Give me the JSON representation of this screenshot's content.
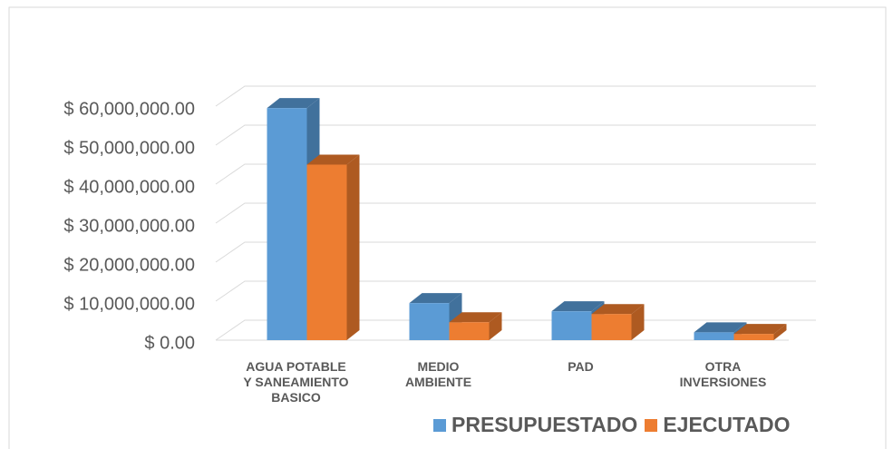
{
  "chart_data": {
    "type": "bar3d",
    "categories": [
      "AGUA POTABLE Y SANEAMIENTO BASICO",
      "MEDIO AMBIENTE",
      "PAD",
      "OTRA INVERSIONES"
    ],
    "series": [
      {
        "name": "PRESUPUESTADO",
        "color": "#5B9BD5",
        "side": "#41719C",
        "values": [
          59500000,
          9500000,
          7400000,
          2000000
        ]
      },
      {
        "name": "EJECUTADO",
        "color": "#ED7D31",
        "side": "#AE5A21",
        "values": [
          45000000,
          4600000,
          6700000,
          1600000
        ]
      }
    ],
    "ylim": [
      0,
      60000000
    ],
    "yticks": [
      {
        "value": 0,
        "label": "$ 0.00"
      },
      {
        "value": 10000000,
        "label": "$ 10,000,000.00"
      },
      {
        "value": 20000000,
        "label": "$ 20,000,000.00"
      },
      {
        "value": 30000000,
        "label": "$ 30,000,000.00"
      },
      {
        "value": 40000000,
        "label": "$ 40,000,000.00"
      },
      {
        "value": 50000000,
        "label": "$ 50,000,000.00"
      },
      {
        "value": 60000000,
        "label": "$ 60,000,000.00"
      }
    ],
    "grid": true,
    "legend": "bottom"
  }
}
